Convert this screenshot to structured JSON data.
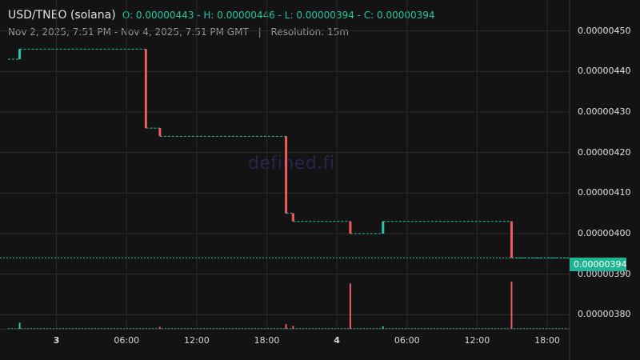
{
  "header": {
    "pair": "USD/TNEO (solana)",
    "ohlc": "O: 0.00000443 - H: 0.00000446 - L: 0.00000394 - C: 0.00000394",
    "range": "Nov 2, 2025, 7:51 PM - Nov 4, 2025, 7:51 PM GMT",
    "separator": "|",
    "resolution": "Resolution: 15m"
  },
  "watermark": "defined.fi",
  "current_price_label": "0.00000394",
  "colors": {
    "up": "#26c6a6",
    "down": "#ef5a62",
    "grid": "#2a2a2a",
    "price_line": "#26c6a6",
    "background": "#131313"
  },
  "chart_data": {
    "type": "candlestick",
    "y_ticks": [
      "0.00000450",
      "0.00000440",
      "0.00000430",
      "0.00000420",
      "0.00000410",
      "0.00000400",
      "0.00000390",
      "0.00000380"
    ],
    "y_tick_values": [
      4.5,
      4.4,
      4.3,
      4.2,
      4.1,
      4.0,
      3.9,
      3.8
    ],
    "ylim": [
      3.775,
      4.505
    ],
    "x_ticks": [
      {
        "label": "3",
        "hour": 4.15,
        "bold": true
      },
      {
        "label": "06:00",
        "hour": 10.15,
        "bold": false
      },
      {
        "label": "12:00",
        "hour": 16.15,
        "bold": false
      },
      {
        "label": "18:00",
        "hour": 22.15,
        "bold": false
      },
      {
        "label": "4",
        "hour": 28.15,
        "bold": true
      },
      {
        "label": "06:00",
        "hour": 34.15,
        "bold": false
      },
      {
        "label": "12:00",
        "hour": 40.15,
        "bold": false
      },
      {
        "label": "18:00",
        "hour": 46.15,
        "bold": false
      }
    ],
    "xlim": [
      0,
      48
    ],
    "last_price": 3.94,
    "segments": [
      {
        "start": 0.0,
        "end": 0.95,
        "price": 4.43
      },
      {
        "start": 1.0,
        "end": 11.8,
        "price": 4.455
      },
      {
        "start": 11.8,
        "end": 13.0,
        "price": 4.26
      },
      {
        "start": 13.0,
        "end": 23.8,
        "price": 4.24
      },
      {
        "start": 23.8,
        "end": 24.4,
        "price": 4.05
      },
      {
        "start": 24.4,
        "end": 29.3,
        "price": 4.03
      },
      {
        "start": 29.3,
        "end": 32.1,
        "price": 4.0
      },
      {
        "start": 32.1,
        "end": 43.1,
        "price": 4.03
      },
      {
        "start": 43.1,
        "end": 48.0,
        "price": 3.94
      }
    ],
    "candles": [
      {
        "t": 1.0,
        "open": 4.43,
        "close": 4.455
      },
      {
        "t": 11.8,
        "open": 4.455,
        "close": 4.26
      },
      {
        "t": 13.0,
        "open": 4.26,
        "close": 4.24
      },
      {
        "t": 23.8,
        "open": 4.24,
        "close": 4.05
      },
      {
        "t": 24.4,
        "open": 4.05,
        "close": 4.03
      },
      {
        "t": 29.3,
        "open": 4.03,
        "close": 4.0
      },
      {
        "t": 32.1,
        "open": 4.0,
        "close": 4.03
      },
      {
        "t": 43.1,
        "open": 4.03,
        "close": 3.94
      }
    ],
    "volume_ylim": [
      0,
      10
    ],
    "volume": [
      {
        "t": 1.0,
        "v": 1.3,
        "dir": "up"
      },
      {
        "t": 13.0,
        "v": 0.4,
        "dir": "down"
      },
      {
        "t": 23.8,
        "v": 1.0,
        "dir": "down"
      },
      {
        "t": 24.4,
        "v": 0.6,
        "dir": "down"
      },
      {
        "t": 29.3,
        "v": 9.6,
        "dir": "down"
      },
      {
        "t": 32.1,
        "v": 0.5,
        "dir": "up"
      },
      {
        "t": 43.1,
        "v": 10.0,
        "dir": "down"
      }
    ]
  }
}
